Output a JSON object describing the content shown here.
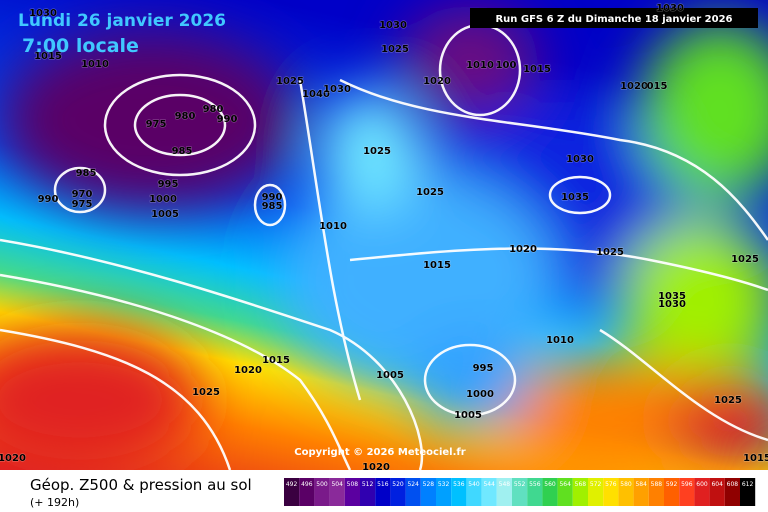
{
  "header": {
    "date": "Lundi 26 janvier 2026",
    "time": "7:00 locale",
    "run": "Run GFS 6 Z du Dimanche 18 janvier 2026"
  },
  "copyright": "Copyright © 2026 Meteociel.fr",
  "footer": {
    "title": "Géop. Z500 & pression au sol",
    "range": "(+ 192h)"
  },
  "legend": {
    "values": [
      492,
      496,
      500,
      504,
      508,
      512,
      516,
      520,
      524,
      528,
      532,
      536,
      540,
      544,
      548,
      552,
      556,
      560,
      564,
      568,
      572,
      576,
      580,
      584,
      588,
      592,
      596,
      600,
      604,
      608,
      612
    ]
  },
  "isobar_labels": [
    "1030",
    "1015",
    "1010",
    "1030",
    "1025",
    "1030",
    "1020",
    "1010",
    "100",
    "1015",
    "1020",
    "015",
    "1025",
    "1040",
    "1030",
    "975",
    "980",
    "980",
    "990",
    "985",
    "1025",
    "1030",
    "985",
    "995",
    "970",
    "975",
    "990",
    "1000",
    "1005",
    "990",
    "985",
    "1010",
    "1025",
    "1035",
    "1020",
    "1025",
    "1025",
    "1015",
    "1035",
    "1030",
    "1010",
    "1015",
    "1020",
    "995",
    "1005",
    "1025",
    "1000",
    "1005",
    "1025",
    "1020",
    "1020",
    "1015"
  ]
}
